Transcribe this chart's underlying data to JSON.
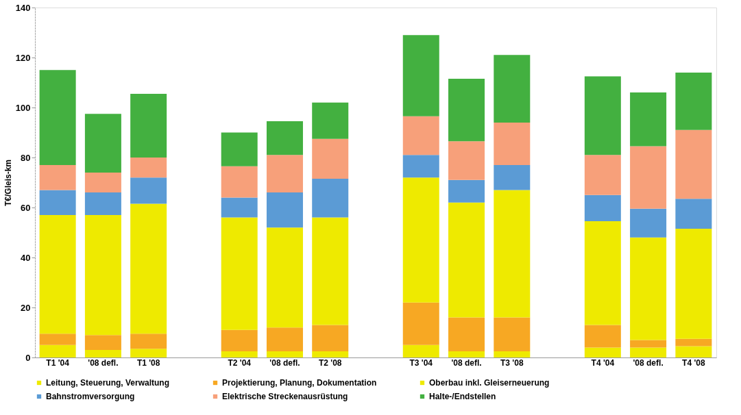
{
  "chart_data": {
    "type": "bar",
    "stacked": true,
    "ylabel": "T€/Gleis-km",
    "ylim": [
      0,
      140
    ],
    "yticks": [
      0,
      20,
      40,
      60,
      80,
      100,
      120,
      140
    ],
    "grid": false,
    "legend": "bottom",
    "categories": [
      "T1 '04",
      "'08 defl.",
      "T1 '08",
      null,
      "T2 '04",
      "'08 defl.",
      "T2 '08",
      null,
      "T3 '04",
      "'08 defl.",
      "T3 '08",
      null,
      "T4 '04",
      "'08 defl.",
      "T4 '08"
    ],
    "series": [
      {
        "name": "Leitung, Steuerung, Verwaltung",
        "color": "#eeea00",
        "values": [
          5,
          3,
          3.5,
          null,
          2.5,
          2.5,
          2.5,
          null,
          5,
          2.5,
          2.5,
          null,
          4,
          4,
          4.5
        ]
      },
      {
        "name": "Projektierung, Planung, Dokumentation",
        "color": "#f7a823",
        "values": [
          4.5,
          6,
          6,
          null,
          8.5,
          9.5,
          10.5,
          null,
          17,
          13.5,
          13.5,
          null,
          9,
          3,
          3
        ]
      },
      {
        "name": "Oberbau inkl. Gleiserneuerung",
        "color": "#eeea00",
        "values": [
          47.5,
          48,
          52,
          null,
          45,
          40,
          43,
          null,
          50,
          46,
          51,
          null,
          41.5,
          41,
          44
        ]
      },
      {
        "name": "Bahnstromversorgung",
        "color": "#5b9bd5",
        "values": [
          10,
          9,
          10.5,
          null,
          8,
          14,
          15.5,
          null,
          9,
          9,
          10,
          null,
          10.5,
          11.5,
          12
        ]
      },
      {
        "name": "Elektrische Streckenausrüstung",
        "color": "#f7a07a",
        "values": [
          10,
          8,
          8,
          null,
          12.5,
          15,
          16,
          null,
          15.5,
          15.5,
          17,
          null,
          16,
          25,
          27.5
        ]
      },
      {
        "name": "Halte-/Endstellen",
        "color": "#43b040",
        "values": [
          38,
          23.5,
          25.5,
          null,
          13.5,
          13.5,
          14.5,
          null,
          32.5,
          25,
          27,
          null,
          31.5,
          21.5,
          23
        ]
      }
    ]
  }
}
